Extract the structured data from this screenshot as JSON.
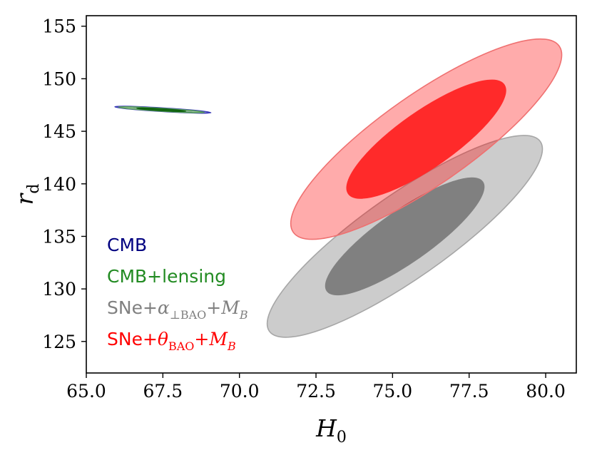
{
  "chart_data": {
    "type": "contour",
    "title": "",
    "xlabel_main": "H",
    "xlabel_sub": "0",
    "ylabel_main": "r",
    "ylabel_sub": "d",
    "xlim": [
      65.0,
      81.0
    ],
    "ylim": [
      122.0,
      156.0
    ],
    "xticks": [
      65.0,
      67.5,
      70.0,
      72.5,
      75.0,
      77.5,
      80.0
    ],
    "xtick_labels": [
      "65.0",
      "67.5",
      "70.0",
      "72.5",
      "75.0",
      "77.5",
      "80.0"
    ],
    "yticks": [
      125,
      130,
      135,
      140,
      145,
      150,
      155
    ],
    "ytick_labels": [
      "125",
      "130",
      "135",
      "140",
      "145",
      "150",
      "155"
    ],
    "grid": false,
    "legend_position": "bottom-left",
    "series": [
      {
        "name": "CMB",
        "legend": {
          "prefix": "CMB",
          "sym": "",
          "sub": "",
          "tail": "",
          "tail_sub": ""
        },
        "color": "#000080",
        "center": [
          67.5,
          147.05
        ],
        "contours": [
          {
            "level": "95%",
            "rx": 1.57,
            "ry": 0.165,
            "angle_deg": 3.5,
            "fill": "#8a8cd0",
            "fill_opacity": 0.7,
            "stroke": "#3b3bb8"
          },
          {
            "level": "68%",
            "rx": 0.95,
            "ry": 0.095,
            "angle_deg": 3.5,
            "fill": "#3b3bb0",
            "fill_opacity": 0.85,
            "stroke": "#2a2a90"
          }
        ]
      },
      {
        "name": "CMB+lensing",
        "legend": {
          "prefix": "CMB+lensing",
          "sym": "",
          "sub": "",
          "tail": "",
          "tail_sub": ""
        },
        "color": "#228b22",
        "center": [
          67.45,
          147.05
        ],
        "contours": [
          {
            "level": "95%",
            "rx": 1.4,
            "ry": 0.13,
            "angle_deg": 3.5,
            "fill": "#9ec99e",
            "fill_opacity": 0.85,
            "stroke": "#5aa05a"
          },
          {
            "level": "68%",
            "rx": 0.8,
            "ry": 0.08,
            "angle_deg": 3.5,
            "fill": "#167516",
            "fill_opacity": 0.95,
            "stroke": "#0f600f"
          }
        ]
      },
      {
        "name": "SNe+α⊥BAO+MB",
        "legend": {
          "prefix": "SNe+",
          "sym": "α",
          "sub": "⊥BAO",
          "tail": "+M",
          "tail_sub": "B"
        },
        "color": "#808080",
        "center": [
          75.4,
          135.0
        ],
        "contours": [
          {
            "level": "95%",
            "rx": 5.4,
            "ry": 4.0,
            "angle_deg": -35,
            "fill": "#cccccc",
            "fill_opacity": 1.0,
            "stroke": "#a6a6a6"
          },
          {
            "level": "68%",
            "rx": 3.1,
            "ry": 2.45,
            "angle_deg": -35,
            "fill": "#808080",
            "fill_opacity": 1.0,
            "stroke": "#808080"
          }
        ]
      },
      {
        "name": "SNe+θBAO+MB",
        "legend": {
          "prefix": "SNe+",
          "sym": "θ",
          "sub": "BAO",
          "tail": "+M",
          "tail_sub": "B"
        },
        "color": "#ff0000",
        "center": [
          76.1,
          144.25
        ],
        "contours": [
          {
            "level": "95%",
            "rx": 5.3,
            "ry": 4.3,
            "angle_deg": -35,
            "fill": "#ff0000",
            "fill_opacity": 0.33,
            "stroke": "#ef7070"
          },
          {
            "level": "68%",
            "rx": 3.1,
            "ry": 2.65,
            "angle_deg": -35,
            "fill": "#ff2a2a",
            "fill_opacity": 1.0,
            "stroke": "#ff2a2a"
          }
        ]
      }
    ]
  }
}
